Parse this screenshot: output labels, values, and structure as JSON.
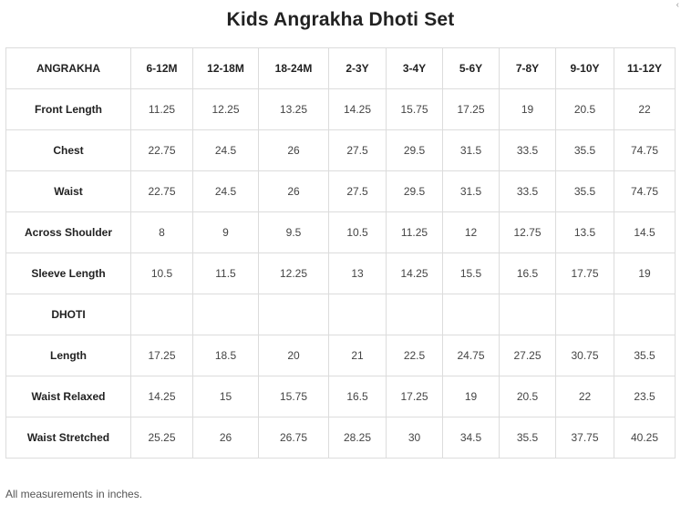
{
  "title": "Kids Angrakha Dhoti Set",
  "corner_mark": "‹",
  "table": {
    "header": [
      "ANGRAKHA",
      "6-12M",
      "12-18M",
      "18-24M",
      "2-3Y",
      "3-4Y",
      "5-6Y",
      "7-8Y",
      "9-10Y",
      "11-12Y"
    ],
    "rows": [
      {
        "label": "Front Length",
        "values": [
          "11.25",
          "12.25",
          "13.25",
          "14.25",
          "15.75",
          "17.25",
          "19",
          "20.5",
          "22"
        ]
      },
      {
        "label": "Chest",
        "values": [
          "22.75",
          "24.5",
          "26",
          "27.5",
          "29.5",
          "31.5",
          "33.5",
          "35.5",
          "74.75"
        ]
      },
      {
        "label": "Waist",
        "values": [
          "22.75",
          "24.5",
          "26",
          "27.5",
          "29.5",
          "31.5",
          "33.5",
          "35.5",
          "74.75"
        ]
      },
      {
        "label": "Across Shoulder",
        "values": [
          "8",
          "9",
          "9.5",
          "10.5",
          "11.25",
          "12",
          "12.75",
          "13.5",
          "14.5"
        ]
      },
      {
        "label": "Sleeve Length",
        "values": [
          "10.5",
          "11.5",
          "12.25",
          "13",
          "14.25",
          "15.5",
          "16.5",
          "17.75",
          "19"
        ]
      },
      {
        "label": "DHOTI",
        "values": [
          "",
          "",
          "",
          "",
          "",
          "",
          "",
          "",
          ""
        ]
      },
      {
        "label": "Length",
        "values": [
          "17.25",
          "18.5",
          "20",
          "21",
          "22.5",
          "24.75",
          "27.25",
          "30.75",
          "35.5"
        ]
      },
      {
        "label": "Waist Relaxed",
        "values": [
          "14.25",
          "15",
          "15.75",
          "16.5",
          "17.25",
          "19",
          "20.5",
          "22",
          "23.5"
        ]
      },
      {
        "label": "Waist Stretched",
        "values": [
          "25.25",
          "26",
          "26.75",
          "28.25",
          "30",
          "34.5",
          "35.5",
          "37.75",
          "40.25"
        ]
      }
    ]
  },
  "footnote": "All measurements in inches."
}
